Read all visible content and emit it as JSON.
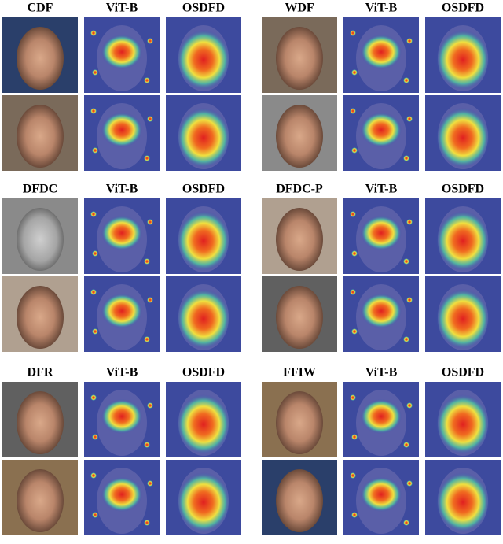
{
  "panels": [
    {
      "headers": [
        "CDF",
        "ViT-B",
        "OSDFD"
      ]
    },
    {
      "headers": [
        "WDF",
        "ViT-B",
        "OSDFD"
      ]
    },
    {
      "headers": [
        "DFDC",
        "ViT-B",
        "OSDFD"
      ]
    },
    {
      "headers": [
        "DFDC-P",
        "ViT-B",
        "OSDFD"
      ]
    },
    {
      "headers": [
        "DFR",
        "ViT-B",
        "OSDFD"
      ]
    },
    {
      "headers": [
        "FFIW",
        "ViT-B",
        "OSDFD"
      ]
    }
  ]
}
